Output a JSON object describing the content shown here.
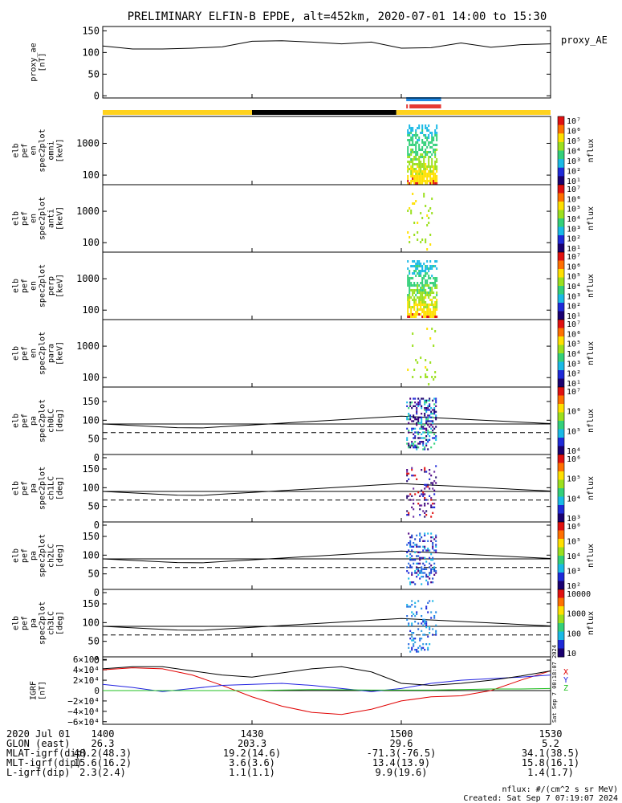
{
  "title": "PRELIMINARY ELFIN-B EPDE, alt=452km, 2020-07-01 14:00 to 15:30",
  "footer": {
    "units_note": "nflux: #/(cm^2 s sr MeV)",
    "created": "Created: Sat Sep  7 07:19:07 2024",
    "side_stamp": "Sat Sep  7 00:18:07 2024"
  },
  "colors": {
    "flag_yellow": "#ffd21e",
    "flag_black": "#000000",
    "flag_blue": "#1e88e5",
    "flag_red": "#e53935",
    "bx": "#e00000",
    "by": "#2020e0",
    "bz": "#20c020",
    "bmag": "#000000"
  },
  "flag_bar": {
    "segments": [
      {
        "from": "14:00",
        "to": "14:30",
        "color": "yellow"
      },
      {
        "from": "14:30",
        "to": "14:59",
        "color": "black"
      },
      {
        "from": "14:59",
        "to": "15:30",
        "color": "yellow"
      }
    ],
    "blue_bar": {
      "from": "15:01",
      "to": "15:08"
    },
    "red_bar": {
      "from": "15:01",
      "to": "15:08"
    }
  },
  "colorbars": [
    {
      "label": "nflux",
      "ticks": [
        "10^7",
        "10^6",
        "10^5",
        "10^4",
        "10^3",
        "10^2",
        "10^1"
      ]
    },
    {
      "label": "nflux",
      "ticks": [
        "10^7",
        "10^6",
        "10^5",
        "10^4",
        "10^3",
        "10^2",
        "10^1"
      ]
    },
    {
      "label": "nflux",
      "ticks": [
        "10^7",
        "10^6",
        "10^5",
        "10^4",
        "10^3",
        "10^2",
        "10^1"
      ]
    },
    {
      "label": "nflux",
      "ticks": [
        "10^7",
        "10^6",
        "10^5",
        "10^4",
        "10^3",
        "10^2",
        "10^1"
      ]
    },
    {
      "label": "nflux",
      "ticks": [
        "10^7",
        "10^6",
        "10^5",
        "10^4"
      ]
    },
    {
      "label": "nflux",
      "ticks": [
        "10^6",
        "10^5",
        "10^4",
        "10^3"
      ]
    },
    {
      "label": "nflux",
      "ticks": [
        "10^6",
        "10^5",
        "10^4",
        "10^3",
        "10^2"
      ]
    },
    {
      "label": "nflux",
      "ticks": [
        "10000",
        "1000",
        "100",
        "10"
      ]
    }
  ],
  "chart_data": [
    {
      "type": "line",
      "panel": "proxy_ae",
      "ylabel": "proxy_ae\n[nT]",
      "legend": "proxy_AE",
      "ylim": [
        -5,
        160
      ],
      "yticks": [
        "150",
        "100",
        "50",
        "0"
      ],
      "x": [
        "14:00",
        "14:06",
        "14:12",
        "14:18",
        "14:24",
        "14:30",
        "14:36",
        "14:42",
        "14:48",
        "14:54",
        "15:00",
        "15:06",
        "15:12",
        "15:18",
        "15:24",
        "15:30"
      ],
      "values": [
        115,
        108,
        108,
        110,
        113,
        126,
        127,
        124,
        120,
        124,
        110,
        111,
        122,
        112,
        118,
        120
      ]
    },
    {
      "type": "heatmap",
      "panel": "omni",
      "ylabel": "elb\npef\nen\nspec2plot\nomni\n[keV]",
      "yscale": "log",
      "yticks": [
        "1000",
        "100"
      ],
      "x_range": [
        "15:01",
        "15:07"
      ]
    },
    {
      "type": "heatmap",
      "panel": "anti",
      "ylabel": "elb\npef\nen\nspec2plot\nanti\n[keV]",
      "yscale": "log",
      "yticks": [
        "1000",
        "100"
      ],
      "x_range": [
        "15:01",
        "15:07"
      ]
    },
    {
      "type": "heatmap",
      "panel": "perp",
      "ylabel": "elb\npef\nen\nspec2plot\nperp\n[keV]",
      "yscale": "log",
      "yticks": [
        "1000",
        "100"
      ],
      "x_range": [
        "15:01",
        "15:07"
      ]
    },
    {
      "type": "heatmap",
      "panel": "para",
      "ylabel": "elb\npef\nen\nspec2plot\npara\n[keV]",
      "yscale": "log",
      "yticks": [
        "1000",
        "100"
      ],
      "x_range": [
        "15:01",
        "15:07"
      ]
    },
    {
      "type": "heatmap",
      "panel": "ch0LC",
      "ylabel": "elb\npef\npa\nspec2plot\nch0LC\n[deg]",
      "ylim": [
        0,
        180
      ],
      "yticks": [
        "150",
        "100",
        "50",
        "0"
      ],
      "x_range": [
        "15:01",
        "15:07"
      ]
    },
    {
      "type": "heatmap",
      "panel": "ch1LC",
      "ylabel": "elb\npef\npa\nspec2plot\nch1LC\n[deg]",
      "ylim": [
        0,
        180
      ],
      "yticks": [
        "150",
        "100",
        "50",
        "0"
      ],
      "x_range": [
        "15:01",
        "15:07"
      ]
    },
    {
      "type": "heatmap",
      "panel": "ch2LC",
      "ylabel": "elb\npef\npa\nspec2plot\nch2LC\n[deg]",
      "ylim": [
        0,
        180
      ],
      "yticks": [
        "150",
        "100",
        "50",
        "0"
      ],
      "x_range": [
        "15:01",
        "15:07"
      ]
    },
    {
      "type": "heatmap",
      "panel": "ch3LC",
      "ylabel": "elb\npef\npa\nspec2plot\nch3LC\n[deg]",
      "ylim": [
        0,
        180
      ],
      "yticks": [
        "150",
        "100",
        "50",
        "0"
      ],
      "x_range": [
        "15:01",
        "15:07"
      ]
    },
    {
      "type": "line",
      "panel": "igrf",
      "ylabel": "IGRF\n[nT]",
      "ylim": [
        -65000,
        65000
      ],
      "yticks": [
        "6×10⁴",
        "4×10⁴",
        "2×10⁴",
        "0",
        "−2×10⁴",
        "−4×10⁴",
        "−6×10⁴"
      ],
      "legend": [
        "X",
        "Y",
        "Z"
      ],
      "x": [
        "14:00",
        "14:06",
        "14:12",
        "14:18",
        "14:24",
        "14:30",
        "14:36",
        "14:42",
        "14:48",
        "14:54",
        "15:00",
        "15:06",
        "15:12",
        "15:18",
        "15:24",
        "15:30"
      ],
      "series": [
        {
          "name": "X",
          "values": [
            40000,
            44000,
            42000,
            30000,
            10000,
            -12000,
            -30000,
            -42000,
            -46000,
            -36000,
            -20000,
            -12000,
            -10000,
            0,
            20000,
            38000
          ]
        },
        {
          "name": "Y",
          "values": [
            12000,
            6000,
            -2000,
            4000,
            10000,
            12000,
            14000,
            10000,
            4000,
            -2000,
            4000,
            14000,
            20000,
            23000,
            26000,
            30000
          ]
        },
        {
          "name": "Z",
          "values": [
            0,
            0,
            0,
            0,
            0,
            0,
            1000,
            2000,
            1500,
            1000,
            1000,
            1000,
            2000,
            3000,
            3000,
            4000
          ]
        },
        {
          "name": "|B|",
          "values": [
            42000,
            46000,
            46000,
            38000,
            30000,
            26000,
            34000,
            42000,
            46000,
            36000,
            14000,
            10000,
            14000,
            20000,
            28000,
            38000
          ]
        }
      ]
    }
  ],
  "x_axis": {
    "row_labels": [
      "2020 Jul 01",
      "GLON (east)",
      "MLAT-igrf(dip)",
      "MLT-igrf(dip)",
      "L-igrf(dip)"
    ],
    "ticks": [
      {
        "time": "1400",
        "values": [
          "26.3",
          "48.2(48.3)",
          "15.6(16.2)",
          "2.3(2.4)"
        ]
      },
      {
        "time": "1430",
        "values": [
          "203.3",
          "19.2(14.6)",
          "3.6(3.6)",
          "1.1(1.1)"
        ]
      },
      {
        "time": "1500",
        "values": [
          "29.6",
          "-71.3(-76.5)",
          "13.4(13.9)",
          "9.9(19.6)"
        ]
      },
      {
        "time": "1530",
        "values": [
          "5.2",
          "34.1(38.5)",
          "15.8(16.1)",
          "1.4(1.7)"
        ]
      }
    ]
  }
}
